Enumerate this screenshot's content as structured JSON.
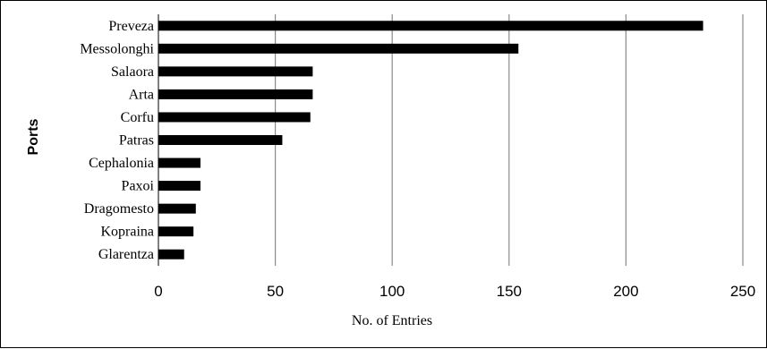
{
  "chart_data": {
    "type": "bar",
    "orientation": "horizontal",
    "categories": [
      "Preveza",
      "Messolonghi",
      "Salaora",
      "Arta",
      "Corfu",
      "Patras",
      "Cephalonia",
      "Paxoi",
      "Dragomesto",
      "Kopraina",
      "Glarentza"
    ],
    "values": [
      233,
      154,
      66,
      66,
      65,
      53,
      18,
      18,
      16,
      15,
      11
    ],
    "xlabel": "No. of Entries",
    "ylabel": "Ports",
    "xlim": [
      0,
      250
    ],
    "xticks": [
      "0",
      "50",
      "100",
      "150",
      "200",
      "250"
    ],
    "grid": "vertical",
    "bar_color": "#000000"
  }
}
